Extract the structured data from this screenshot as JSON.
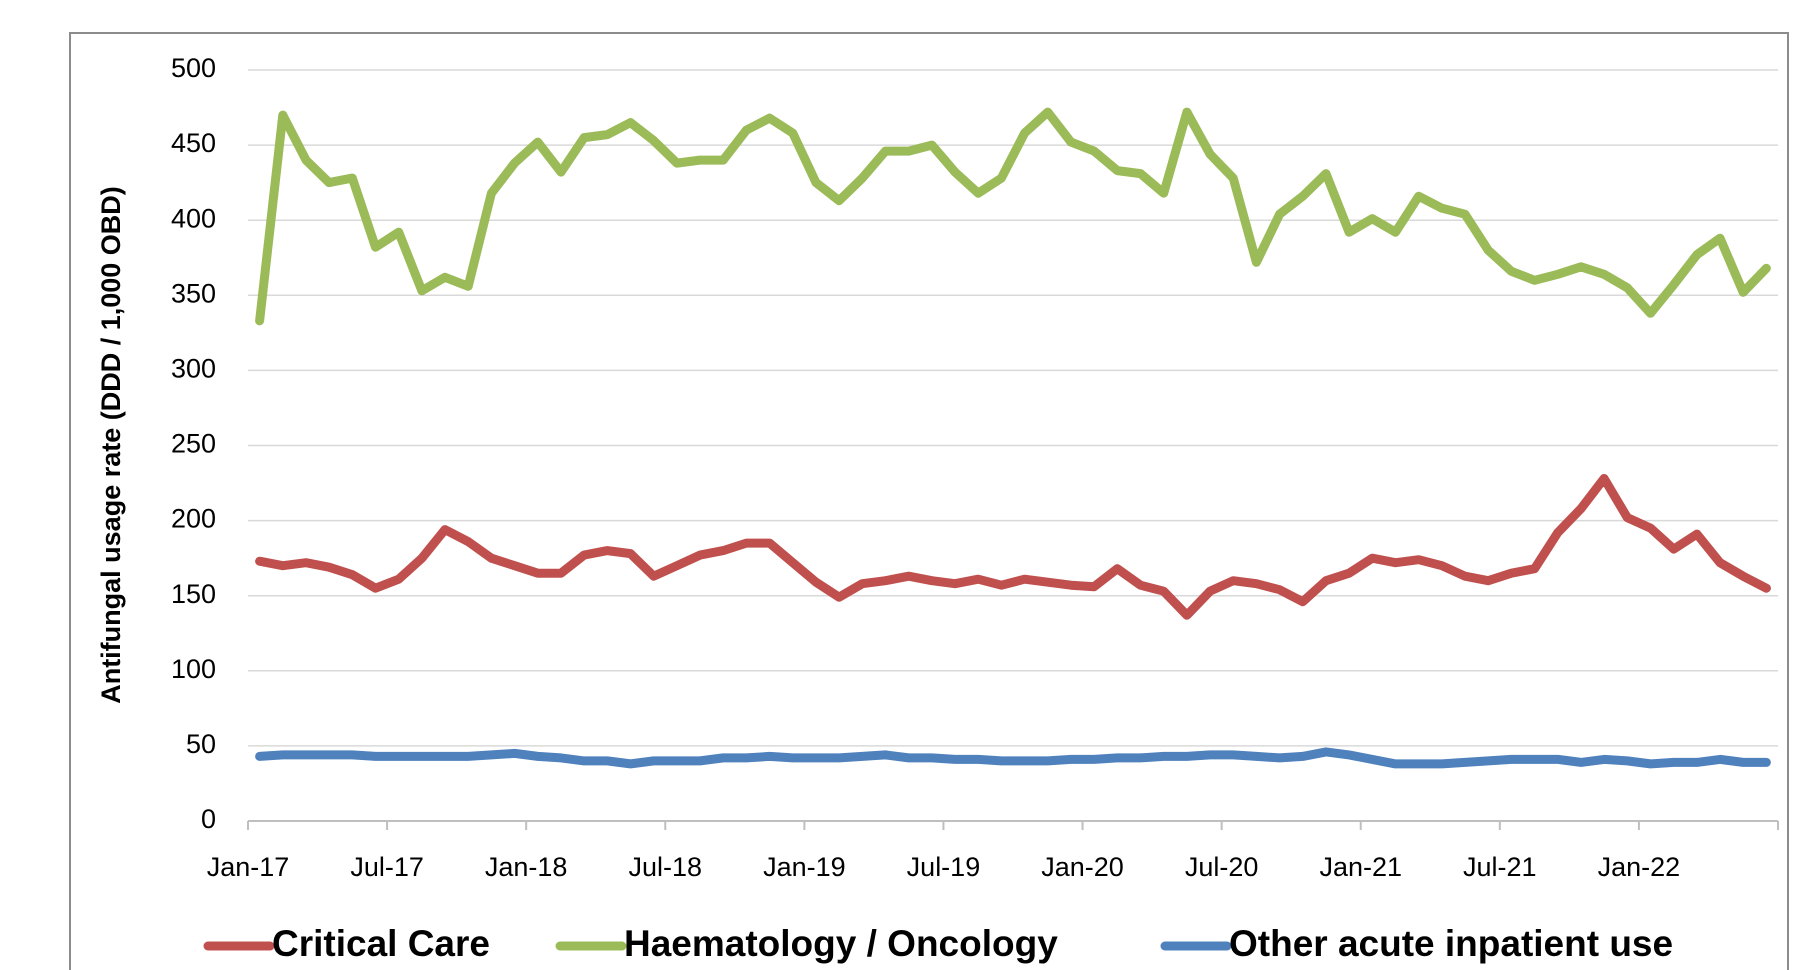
{
  "chart_data": {
    "type": "line",
    "y_axis_label": "Antifungal usage rate (DDD / 1,000 OBD)",
    "categories": [
      "Jan-17",
      null,
      null,
      null,
      null,
      null,
      "Jul-17",
      null,
      null,
      null,
      null,
      null,
      "Jan-18",
      null,
      null,
      null,
      null,
      null,
      "Jul-18",
      null,
      null,
      null,
      null,
      null,
      "Jan-19",
      null,
      null,
      null,
      null,
      null,
      "Jul-19",
      null,
      null,
      null,
      null,
      null,
      "Jan-20",
      null,
      null,
      null,
      null,
      null,
      "Jul-20",
      null,
      null,
      null,
      null,
      null,
      "Jan-21",
      null,
      null,
      null,
      null,
      null,
      "Jul-21",
      null,
      null,
      null,
      null,
      null,
      "Jan-22",
      null,
      null,
      null,
      null,
      null
    ],
    "series": [
      {
        "name": "Critical Care",
        "color": "#c0504d",
        "values": [
          173,
          170,
          172,
          169,
          164,
          155,
          161,
          175,
          194,
          186,
          175,
          170,
          165,
          165,
          177,
          180,
          178,
          163,
          170,
          177,
          180,
          185,
          185,
          172,
          159,
          149,
          158,
          160,
          163,
          160,
          158,
          161,
          157,
          161,
          159,
          157,
          156,
          168,
          157,
          153,
          137,
          153,
          160,
          158,
          154,
          146,
          160,
          165,
          175,
          172,
          174,
          170,
          163,
          160,
          165,
          168,
          192,
          208,
          228,
          202,
          195,
          181,
          191,
          172,
          163,
          155
        ]
      },
      {
        "name": "Haematology / Oncology",
        "color": "#9bbb59",
        "values": [
          333,
          470,
          440,
          425,
          428,
          382,
          392,
          353,
          362,
          356,
          418,
          438,
          452,
          432,
          455,
          457,
          465,
          453,
          438,
          440,
          440,
          460,
          468,
          458,
          425,
          413,
          428,
          446,
          446,
          450,
          432,
          418,
          428,
          458,
          472,
          452,
          446,
          433,
          431,
          418,
          472,
          444,
          428,
          372,
          404,
          416,
          431,
          392,
          401,
          392,
          416,
          408,
          404,
          380,
          366,
          360,
          364,
          369,
          364,
          355,
          338,
          357,
          377,
          388,
          352,
          368
        ]
      },
      {
        "name": "Other acute inpatient use",
        "color": "#4f81bd",
        "values": [
          43,
          44,
          44,
          44,
          44,
          43,
          43,
          43,
          43,
          43,
          44,
          45,
          43,
          42,
          40,
          40,
          38,
          40,
          40,
          40,
          42,
          42,
          43,
          42,
          42,
          42,
          43,
          44,
          42,
          42,
          41,
          41,
          40,
          40,
          40,
          41,
          41,
          42,
          42,
          43,
          43,
          44,
          44,
          43,
          42,
          43,
          46,
          44,
          41,
          38,
          38,
          38,
          39,
          40,
          41,
          41,
          41,
          39,
          41,
          40,
          38,
          39,
          39,
          41,
          39,
          39
        ]
      }
    ],
    "ylim": [
      0,
      500
    ],
    "yticks": [
      0,
      50,
      100,
      150,
      200,
      250,
      300,
      350,
      400,
      450,
      500
    ],
    "grid": true,
    "legend": "bottom"
  }
}
